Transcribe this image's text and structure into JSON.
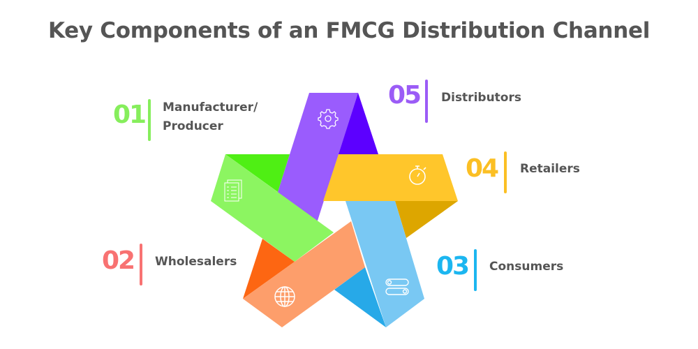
{
  "title": "Key Components of an FMCG Distribution Channel",
  "items": [
    {
      "number": "01",
      "label_line1": "Manufacturer/",
      "label_line2": "Producer",
      "color": "#86ee5c",
      "icon": "checklist-documents-icon"
    },
    {
      "number": "02",
      "label": "Wholesalers",
      "color": "#f87272",
      "icon": "globe-icon"
    },
    {
      "number": "03",
      "label": "Consumers",
      "color": "#1cb6f0",
      "icon": "toggle-switches-icon"
    },
    {
      "number": "04",
      "label": "Retailers",
      "color": "#fbbf24",
      "icon": "stopwatch-icon"
    },
    {
      "number": "05",
      "label": "Distributors",
      "color": "#9b5cf6",
      "icon": "gear-icon"
    }
  ],
  "star_colors": {
    "purple": "#9a5cfd",
    "purple_dark": "#5c00ff",
    "yellow": "#ffc62b",
    "yellow_dark": "#dda600",
    "blue": "#79c8f3",
    "blue_dark": "#27a9e8",
    "orange": "#fd9e6b",
    "orange_dark": "#fd6612",
    "green": "#8cf561",
    "green_dark": "#4fef14"
  }
}
